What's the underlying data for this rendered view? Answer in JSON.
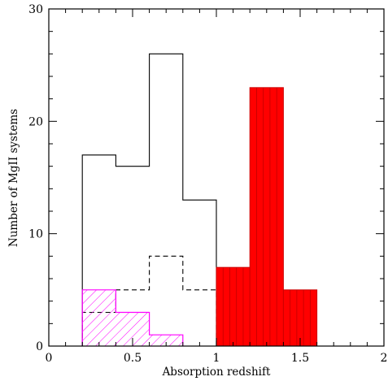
{
  "chart_data": {
    "type": "histogram",
    "xlabel": "Absorption redshift",
    "ylabel": "Number of MgII systems",
    "xlim": [
      0,
      2
    ],
    "ylim": [
      0,
      30
    ],
    "x_ticks": [
      {
        "value": 0,
        "label": "0"
      },
      {
        "value": 0.5,
        "label": "0.5"
      },
      {
        "value": 1,
        "label": "1"
      },
      {
        "value": 1.5,
        "label": "1.5"
      },
      {
        "value": 2,
        "label": "2"
      }
    ],
    "y_ticks": [
      {
        "value": 0,
        "label": "0"
      },
      {
        "value": 10,
        "label": "10"
      },
      {
        "value": 20,
        "label": "20"
      },
      {
        "value": 30,
        "label": "30"
      }
    ],
    "x_minor_step": 0.1,
    "y_minor_step": 2,
    "grid": false,
    "series": [
      {
        "style": "solid-black-outline",
        "color": "#000000",
        "bins": [
          {
            "x0": 0.2,
            "x1": 0.4,
            "value": 17
          },
          {
            "x0": 0.4,
            "x1": 0.6,
            "value": 16
          },
          {
            "x0": 0.6,
            "x1": 0.8,
            "value": 26
          },
          {
            "x0": 0.8,
            "x1": 1.0,
            "value": 13
          }
        ]
      },
      {
        "style": "dashed-black-outline",
        "color": "#000000",
        "bins": [
          {
            "x0": 0.2,
            "x1": 0.4,
            "value": 3
          },
          {
            "x0": 0.4,
            "x1": 0.6,
            "value": 5
          },
          {
            "x0": 0.6,
            "x1": 0.8,
            "value": 8
          },
          {
            "x0": 0.8,
            "x1": 1.0,
            "value": 5
          }
        ]
      },
      {
        "style": "magenta-hatched",
        "color": "#ff00ff",
        "bins": [
          {
            "x0": 0.2,
            "x1": 0.4,
            "value": 5
          },
          {
            "x0": 0.4,
            "x1": 0.6,
            "value": 3
          },
          {
            "x0": 0.6,
            "x1": 0.8,
            "value": 1
          }
        ]
      },
      {
        "style": "red-filled",
        "color": "#ff0000",
        "bins": [
          {
            "x0": 1.0,
            "x1": 1.2,
            "value": 7
          },
          {
            "x0": 1.2,
            "x1": 1.4,
            "value": 23
          },
          {
            "x0": 1.4,
            "x1": 1.6,
            "value": 5
          }
        ]
      }
    ]
  }
}
